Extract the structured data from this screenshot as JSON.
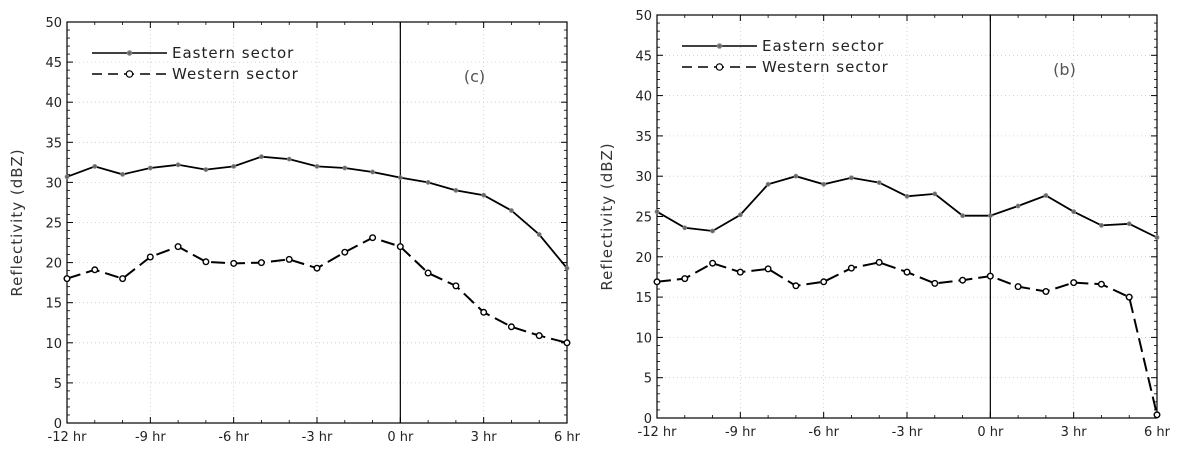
{
  "chart_data": [
    {
      "type": "line",
      "panel_label": "(c)",
      "ylabel": "Reflectivity (dBZ)",
      "ylim": [
        0,
        50
      ],
      "yticks": [
        "0",
        "5",
        "10",
        "15",
        "20",
        "25",
        "30",
        "35",
        "40",
        "45",
        "50"
      ],
      "xlim": [
        -12,
        6
      ],
      "xticks": [
        {
          "value": -12,
          "label": "-12 hr"
        },
        {
          "value": -9,
          "label": "-9 hr"
        },
        {
          "value": -6,
          "label": "-6 hr"
        },
        {
          "value": -3,
          "label": "-3 hr"
        },
        {
          "value": 0,
          "label": "0 hr"
        },
        {
          "value": 3,
          "label": "3 hr"
        },
        {
          "value": 6,
          "label": "6 hr"
        }
      ],
      "grid": true,
      "legend_position": "top-left",
      "x": [
        -12,
        -11,
        -10,
        -9,
        -8,
        -7,
        -6,
        -5,
        -4,
        -3,
        -2,
        -1,
        0,
        1,
        2,
        3,
        4,
        5,
        6
      ],
      "series": [
        {
          "name": "Eastern sector",
          "style": "solid",
          "marker": "filled",
          "values": [
            30.7,
            32.0,
            31.0,
            31.8,
            32.2,
            31.6,
            32.0,
            33.2,
            32.9,
            32.0,
            31.8,
            31.3,
            30.6,
            30.0,
            29.0,
            28.4,
            26.5,
            23.5,
            19.3
          ]
        },
        {
          "name": "Western sector",
          "style": "dashed",
          "marker": "open",
          "values": [
            18.0,
            19.1,
            18.0,
            20.7,
            22.0,
            20.1,
            19.9,
            20.0,
            20.4,
            19.3,
            21.3,
            23.1,
            22.0,
            18.7,
            17.1,
            13.8,
            12.0,
            10.9,
            10.0
          ]
        }
      ]
    },
    {
      "type": "line",
      "panel_label": "(b)",
      "ylabel": "Reflectivity (dBZ)",
      "ylim": [
        0,
        50
      ],
      "yticks": [
        "0",
        "5",
        "10",
        "15",
        "20",
        "25",
        "30",
        "35",
        "40",
        "45",
        "50"
      ],
      "xlim": [
        -12,
        6
      ],
      "xticks": [
        {
          "value": -12,
          "label": "-12 hr"
        },
        {
          "value": -9,
          "label": "-9 hr"
        },
        {
          "value": -6,
          "label": "-6 hr"
        },
        {
          "value": -3,
          "label": "-3 hr"
        },
        {
          "value": 0,
          "label": "0 hr"
        },
        {
          "value": 3,
          "label": "3 hr"
        },
        {
          "value": 6,
          "label": "6 hr"
        }
      ],
      "grid": true,
      "legend_position": "top-left",
      "x": [
        -12,
        -11,
        -10,
        -9,
        -8,
        -7,
        -6,
        -5,
        -4,
        -3,
        -2,
        -1,
        0,
        1,
        2,
        3,
        4,
        5,
        6
      ],
      "series": [
        {
          "name": "Eastern sector",
          "style": "solid",
          "marker": "filled",
          "values": [
            25.6,
            23.6,
            23.2,
            25.2,
            29.0,
            30.0,
            29.0,
            29.8,
            29.2,
            27.5,
            27.8,
            25.1,
            25.1,
            26.3,
            27.6,
            25.6,
            23.9,
            24.1,
            22.4
          ]
        },
        {
          "name": "Western sector",
          "style": "dashed",
          "marker": "open",
          "values": [
            16.9,
            17.3,
            19.2,
            18.1,
            18.5,
            16.4,
            16.9,
            18.6,
            19.3,
            18.1,
            16.7,
            17.1,
            17.6,
            16.3,
            15.7,
            16.8,
            16.6,
            15.0,
            0.4
          ]
        }
      ]
    }
  ]
}
